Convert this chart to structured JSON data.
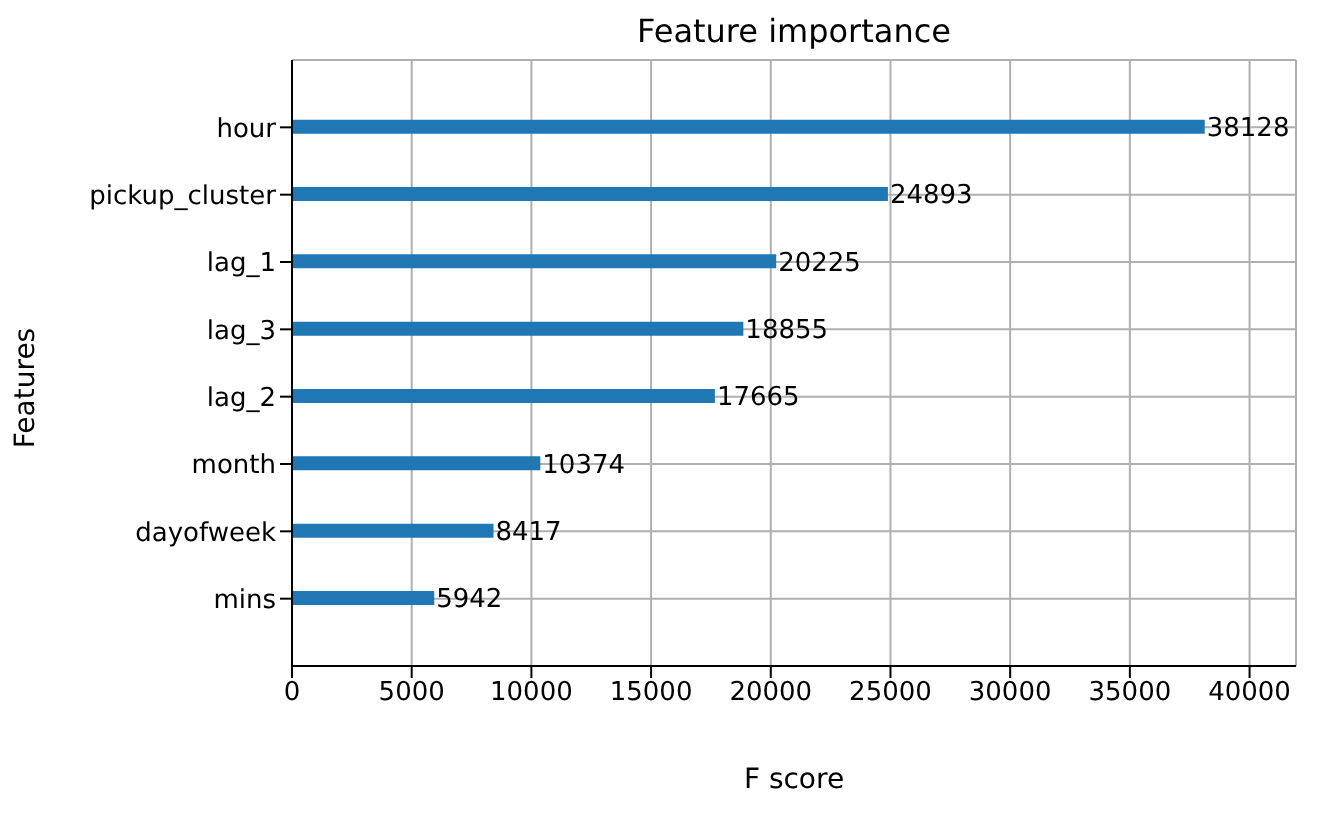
{
  "chart_data": {
    "type": "bar",
    "orientation": "horizontal",
    "title": "Feature importance",
    "xlabel": "F score",
    "ylabel": "Features",
    "categories": [
      "hour",
      "pickup_cluster",
      "lag_1",
      "lag_3",
      "lag_2",
      "month",
      "dayofweek",
      "mins"
    ],
    "values": [
      38128,
      24893,
      20225,
      18855,
      17665,
      10374,
      8417,
      5942
    ],
    "color": "#1f77b4",
    "xlim": [
      0,
      41940
    ],
    "xticks": [
      0,
      5000,
      10000,
      15000,
      20000,
      25000,
      30000,
      35000,
      40000
    ],
    "grid": true,
    "data_labels": true
  }
}
